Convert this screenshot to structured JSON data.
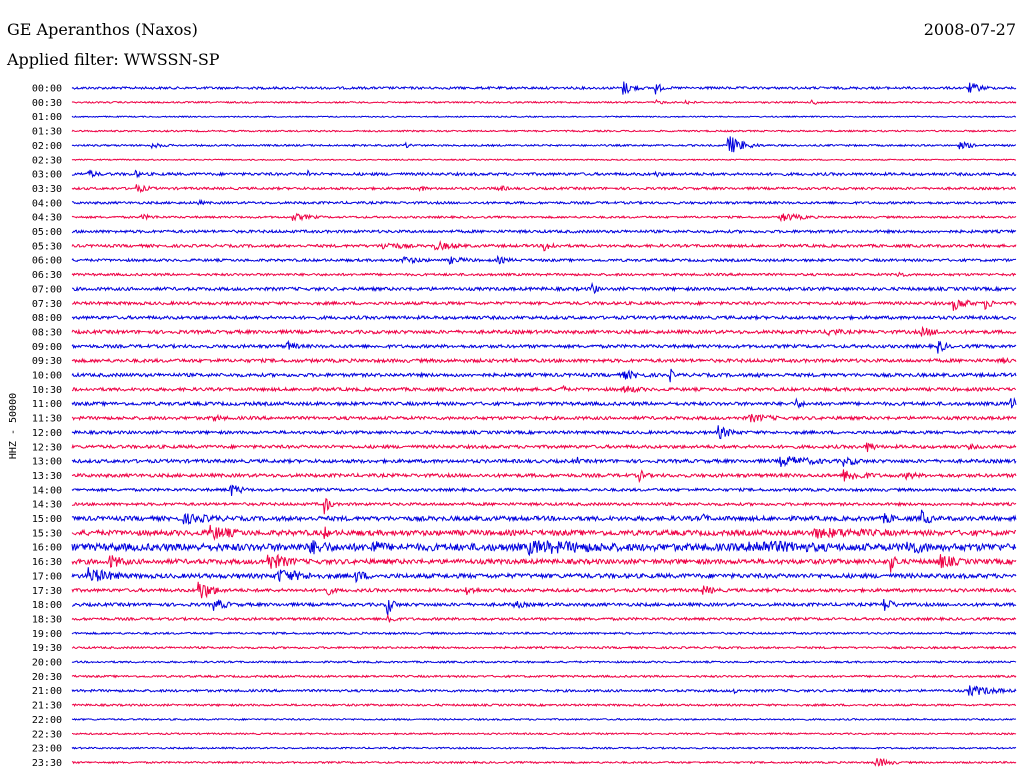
{
  "header": {
    "station": "GE Aperanthos (Naxos)",
    "date": "2008-07-27",
    "filter_label": "Applied filter: WWSSN-SP"
  },
  "chart_data": {
    "type": "line",
    "title": "GE Aperanthos (Naxos)",
    "ylabel": "HHZ - 50000",
    "xlabel": "",
    "grid": false,
    "colors": [
      "#0000dd",
      "#ee0044"
    ],
    "rows": [
      "00:00",
      "00:30",
      "01:00",
      "01:30",
      "02:00",
      "02:30",
      "03:00",
      "03:30",
      "04:00",
      "04:30",
      "05:00",
      "05:30",
      "06:00",
      "06:30",
      "07:00",
      "07:30",
      "08:00",
      "08:30",
      "09:00",
      "09:30",
      "10:00",
      "10:30",
      "11:00",
      "11:30",
      "12:00",
      "12:30",
      "13:00",
      "13:30",
      "14:00",
      "14:30",
      "15:00",
      "15:30",
      "16:00",
      "16:30",
      "17:00",
      "17:30",
      "18:00",
      "18:30",
      "19:00",
      "19:30",
      "20:00",
      "20:30",
      "21:00",
      "21:30",
      "22:00",
      "22:30",
      "23:00",
      "23:30"
    ],
    "noise_level": [
      1.2,
      0.8,
      0.6,
      0.8,
      0.9,
      0.6,
      1.4,
      1.2,
      1.2,
      1.0,
      1.4,
      1.4,
      1.3,
      1.2,
      1.6,
      1.5,
      1.6,
      1.7,
      1.6,
      1.7,
      1.7,
      1.6,
      1.7,
      1.6,
      1.5,
      1.6,
      1.7,
      1.7,
      1.4,
      1.4,
      2.2,
      2.6,
      3.6,
      2.4,
      2.2,
      1.6,
      1.6,
      1.3,
      1.0,
      1.0,
      0.9,
      1.0,
      1.2,
      1.0,
      0.8,
      0.8,
      0.8,
      0.9
    ],
    "events": [
      {
        "row": 0,
        "min": 17.5,
        "dur": 0.4,
        "amp": 8
      },
      {
        "row": 0,
        "min": 18.5,
        "dur": 0.2,
        "amp": 9
      },
      {
        "row": 0,
        "min": 28.5,
        "dur": 0.5,
        "amp": 6
      },
      {
        "row": 1,
        "min": 18.5,
        "dur": 0.4,
        "amp": 3
      },
      {
        "row": 1,
        "min": 19.5,
        "dur": 0.3,
        "amp": 3
      },
      {
        "row": 1,
        "min": 23.5,
        "dur": 0.5,
        "amp": 3
      },
      {
        "row": 4,
        "min": 2.5,
        "dur": 0.6,
        "amp": 3
      },
      {
        "row": 4,
        "min": 10.5,
        "dur": 0.5,
        "amp": 3
      },
      {
        "row": 4,
        "min": 20.8,
        "dur": 0.5,
        "amp": 12
      },
      {
        "row": 4,
        "min": 28.2,
        "dur": 0.6,
        "amp": 4
      },
      {
        "row": 6,
        "min": 0.5,
        "dur": 0.3,
        "amp": 6
      },
      {
        "row": 6,
        "min": 2.0,
        "dur": 0.3,
        "amp": 4
      },
      {
        "row": 6,
        "min": 7.5,
        "dur": 0.1,
        "amp": 5
      },
      {
        "row": 6,
        "min": 18.5,
        "dur": 0.3,
        "amp": 4
      },
      {
        "row": 7,
        "min": 2.0,
        "dur": 0.5,
        "amp": 5
      },
      {
        "row": 7,
        "min": 11.0,
        "dur": 0.3,
        "amp": 4
      },
      {
        "row": 7,
        "min": 13.5,
        "dur": 0.4,
        "amp": 4
      },
      {
        "row": 8,
        "min": 4.0,
        "dur": 0.3,
        "amp": 3
      },
      {
        "row": 9,
        "min": 2.2,
        "dur": 0.7,
        "amp": 3
      },
      {
        "row": 9,
        "min": 7.0,
        "dur": 0.8,
        "amp": 4
      },
      {
        "row": 9,
        "min": 22.5,
        "dur": 0.8,
        "amp": 5
      },
      {
        "row": 11,
        "min": 9.8,
        "dur": 0.9,
        "amp": 5
      },
      {
        "row": 11,
        "min": 11.5,
        "dur": 0.9,
        "amp": 5
      },
      {
        "row": 11,
        "min": 15.0,
        "dur": 0.4,
        "amp": 6
      },
      {
        "row": 12,
        "min": 10.5,
        "dur": 0.9,
        "amp": 4
      },
      {
        "row": 12,
        "min": 12.0,
        "dur": 0.8,
        "amp": 4
      },
      {
        "row": 12,
        "min": 13.5,
        "dur": 0.6,
        "amp": 4
      },
      {
        "row": 13,
        "min": 21.2,
        "dur": 0.1,
        "amp": 6
      },
      {
        "row": 13,
        "min": 26.2,
        "dur": 0.3,
        "amp": 5
      },
      {
        "row": 14,
        "min": 16.5,
        "dur": 0.2,
        "amp": 8
      },
      {
        "row": 15,
        "min": 28.0,
        "dur": 0.5,
        "amp": 8
      },
      {
        "row": 15,
        "min": 29.0,
        "dur": 0.3,
        "amp": 7
      },
      {
        "row": 17,
        "min": 24.0,
        "dur": 0.6,
        "amp": 5
      },
      {
        "row": 17,
        "min": 27.0,
        "dur": 0.9,
        "amp": 5
      },
      {
        "row": 18,
        "min": 6.8,
        "dur": 0.4,
        "amp": 6
      },
      {
        "row": 18,
        "min": 27.5,
        "dur": 0.3,
        "amp": 8
      },
      {
        "row": 19,
        "min": 29.5,
        "dur": 0.5,
        "amp": 4
      },
      {
        "row": 20,
        "min": 17.5,
        "dur": 0.9,
        "amp": 5
      },
      {
        "row": 20,
        "min": 19.0,
        "dur": 0.1,
        "amp": 9
      },
      {
        "row": 20,
        "min": 21.8,
        "dur": 0.2,
        "amp": 4
      },
      {
        "row": 21,
        "min": 15.5,
        "dur": 0.1,
        "amp": 14
      },
      {
        "row": 21,
        "min": 17.5,
        "dur": 0.7,
        "amp": 5
      },
      {
        "row": 22,
        "min": 23.0,
        "dur": 0.3,
        "amp": 6
      },
      {
        "row": 22,
        "min": 29.8,
        "dur": 0.3,
        "amp": 8
      },
      {
        "row": 23,
        "min": 4.5,
        "dur": 0.5,
        "amp": 4
      },
      {
        "row": 23,
        "min": 21.5,
        "dur": 1.0,
        "amp": 5
      },
      {
        "row": 24,
        "min": 20.5,
        "dur": 0.5,
        "amp": 8
      },
      {
        "row": 25,
        "min": 25.2,
        "dur": 0.3,
        "amp": 8
      },
      {
        "row": 25,
        "min": 28.5,
        "dur": 0.6,
        "amp": 3
      },
      {
        "row": 26,
        "min": 16.0,
        "dur": 0.1,
        "amp": 8
      },
      {
        "row": 26,
        "min": 22.5,
        "dur": 1.5,
        "amp": 6
      },
      {
        "row": 26,
        "min": 24.5,
        "dur": 0.6,
        "amp": 6
      },
      {
        "row": 27,
        "min": 18.0,
        "dur": 0.3,
        "amp": 7
      },
      {
        "row": 27,
        "min": 24.5,
        "dur": 0.9,
        "amp": 7
      },
      {
        "row": 27,
        "min": 26.5,
        "dur": 0.5,
        "amp": 5
      },
      {
        "row": 28,
        "min": 5.0,
        "dur": 0.4,
        "amp": 8
      },
      {
        "row": 29,
        "min": 8.0,
        "dur": 0.2,
        "amp": 12
      },
      {
        "row": 30,
        "min": 3.5,
        "dur": 1.5,
        "amp": 6
      },
      {
        "row": 30,
        "min": 20.0,
        "dur": 0.3,
        "amp": 6
      },
      {
        "row": 30,
        "min": 25.8,
        "dur": 0.6,
        "amp": 6
      },
      {
        "row": 30,
        "min": 27.0,
        "dur": 0.3,
        "amp": 10
      },
      {
        "row": 31,
        "min": 4.3,
        "dur": 1.0,
        "amp": 9
      },
      {
        "row": 31,
        "min": 8.0,
        "dur": 0.2,
        "amp": 8
      },
      {
        "row": 31,
        "min": 23.5,
        "dur": 3.5,
        "amp": 6
      },
      {
        "row": 32,
        "min": 7.5,
        "dur": 1.0,
        "amp": 9
      },
      {
        "row": 32,
        "min": 9.5,
        "dur": 0.6,
        "amp": 9
      },
      {
        "row": 32,
        "min": 14.5,
        "dur": 4.0,
        "amp": 8
      },
      {
        "row": 32,
        "min": 21.5,
        "dur": 3.5,
        "amp": 8
      },
      {
        "row": 32,
        "min": 26.5,
        "dur": 1.0,
        "amp": 9
      },
      {
        "row": 33,
        "min": 1.2,
        "dur": 0.6,
        "amp": 8
      },
      {
        "row": 33,
        "min": 6.2,
        "dur": 0.8,
        "amp": 10
      },
      {
        "row": 33,
        "min": 26.0,
        "dur": 0.2,
        "amp": 14
      },
      {
        "row": 33,
        "min": 27.5,
        "dur": 0.7,
        "amp": 9
      },
      {
        "row": 34,
        "min": 0.5,
        "dur": 1.0,
        "amp": 9
      },
      {
        "row": 34,
        "min": 6.5,
        "dur": 1.2,
        "amp": 8
      },
      {
        "row": 34,
        "min": 9.0,
        "dur": 0.5,
        "amp": 7
      },
      {
        "row": 35,
        "min": 4.0,
        "dur": 0.5,
        "amp": 12
      },
      {
        "row": 35,
        "min": 8.0,
        "dur": 0.3,
        "amp": 8
      },
      {
        "row": 35,
        "min": 12.5,
        "dur": 0.4,
        "amp": 6
      },
      {
        "row": 35,
        "min": 20.0,
        "dur": 0.5,
        "amp": 6
      },
      {
        "row": 36,
        "min": 4.5,
        "dur": 0.5,
        "amp": 7
      },
      {
        "row": 36,
        "min": 10.0,
        "dur": 0.2,
        "amp": 14
      },
      {
        "row": 36,
        "min": 14.0,
        "dur": 0.5,
        "amp": 5
      },
      {
        "row": 36,
        "min": 25.8,
        "dur": 0.3,
        "amp": 9
      },
      {
        "row": 37,
        "min": 10.0,
        "dur": 0.2,
        "amp": 10
      },
      {
        "row": 42,
        "min": 21.0,
        "dur": 0.2,
        "amp": 4
      },
      {
        "row": 42,
        "min": 28.5,
        "dur": 1.0,
        "amp": 6
      },
      {
        "row": 45,
        "min": 31.0,
        "dur": 0.6,
        "amp": 3
      },
      {
        "row": 47,
        "min": 25.5,
        "dur": 0.5,
        "amp": 6
      }
    ]
  }
}
